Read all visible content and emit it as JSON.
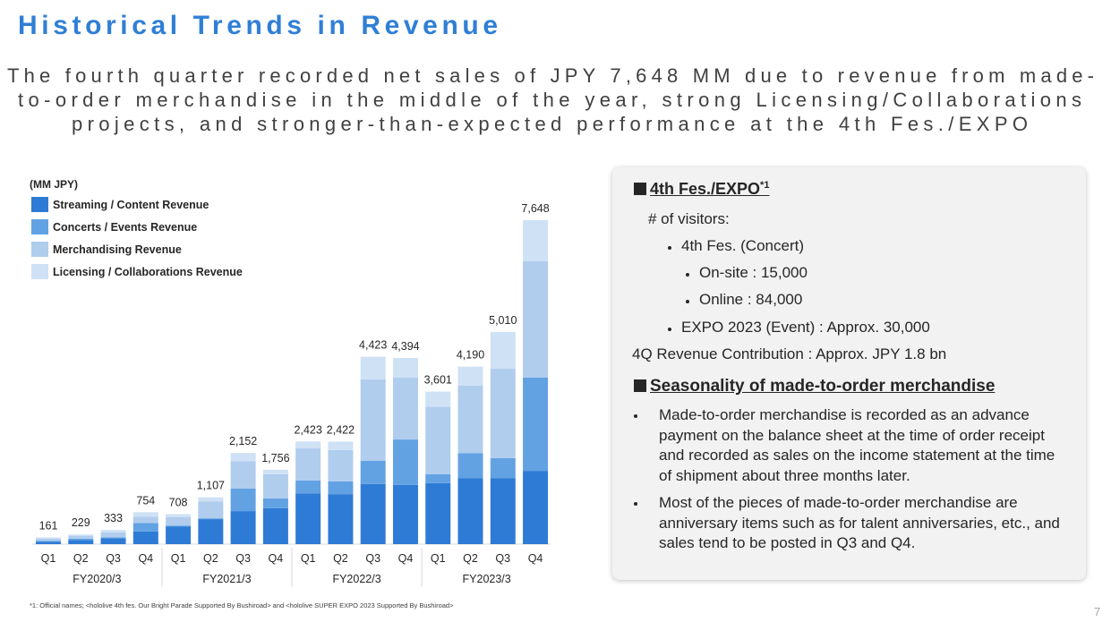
{
  "page": {
    "title": "Historical Trends in Revenue",
    "subtitle_lines": [
      "The fourth quarter recorded net sales of JPY 7,648 MM due to revenue from made-",
      "to-order merchandise in the middle of the year, strong Licensing/Collaborations",
      "projects, and stronger-than-expected performance at the 4th Fes./EXPO"
    ],
    "footnote": "*1: Official names; <hololive 4th fes. Our Bright Parade Supported By Bushiroad> and <hololive SUPER EXPO 2023 Supported By Bushiroad>",
    "page_number": "7"
  },
  "chart_data": {
    "type": "stacked_bar",
    "y_label": "(MM JPY)",
    "groups": [
      {
        "name": "FY2020/3",
        "categories": [
          "Q1",
          "Q2",
          "Q3",
          "Q4"
        ]
      },
      {
        "name": "FY2021/3",
        "categories": [
          "Q1",
          "Q2",
          "Q3",
          "Q4"
        ]
      },
      {
        "name": "FY2022/3",
        "categories": [
          "Q1",
          "Q2",
          "Q3",
          "Q4"
        ]
      },
      {
        "name": "FY2023/3",
        "categories": [
          "Q1",
          "Q2",
          "Q3",
          "Q4"
        ]
      }
    ],
    "series": [
      {
        "name": "Streaming / Content Revenue",
        "color": "#2e7bd5",
        "values": [
          60,
          100,
          140,
          300,
          420,
          590,
          780,
          850,
          1200,
          1180,
          1420,
          1400,
          1440,
          1560,
          1560,
          1730
        ]
      },
      {
        "name": "Concerts / Events Revenue",
        "color": "#62a2e3",
        "values": [
          20,
          30,
          20,
          200,
          20,
          20,
          530,
          230,
          300,
          300,
          550,
          1070,
          210,
          590,
          470,
          2200
        ]
      },
      {
        "name": "Merchandising Revenue",
        "color": "#b0cdee",
        "values": [
          50,
          60,
          120,
          150,
          200,
          400,
          650,
          570,
          760,
          740,
          1920,
          1460,
          1590,
          1590,
          2110,
          2750
        ]
      },
      {
        "name": "Licensing / Collaborations Revenue",
        "color": "#cfe1f5",
        "values": [
          31,
          39,
          53,
          104,
          68,
          97,
          192,
          106,
          163,
          202,
          533,
          464,
          361,
          450,
          870,
          968
        ]
      }
    ],
    "totals": [
      161,
      229,
      333,
      754,
      708,
      1107,
      2152,
      1756,
      2423,
      2422,
      4423,
      4394,
      3601,
      4190,
      5010,
      7648
    ],
    "total_labels": [
      "161",
      "229",
      "333",
      "754",
      "708",
      "1,107",
      "2,152",
      "1,756",
      "2,423",
      "2,422",
      "4,423",
      "4,394",
      "3,601",
      "4,190",
      "5,010",
      "7,648"
    ]
  },
  "panel": {
    "heading1": "4th Fes./EXPO",
    "heading1_note": "*1",
    "visitors_label": "# of visitors:",
    "items": [
      "4th Fes. (Concert)",
      "On-site : 15,000",
      "Online : 84,000",
      "EXPO 2023 (Event) : Approx. 30,000"
    ],
    "contribution": "4Q Revenue Contribution : Approx. JPY 1.8 bn",
    "heading2": "Seasonality of made-to-order merchandise",
    "bullets": [
      "Made-to-order merchandise is recorded as an advance payment on the balance sheet at the time of order receipt and recorded as sales on the income statement at the time of shipment about three months later.",
      "Most of the pieces of made-to-order merchandise are anniversary items such as for talent anniversaries, etc., and sales tend to be posted in Q3 and Q4."
    ]
  }
}
